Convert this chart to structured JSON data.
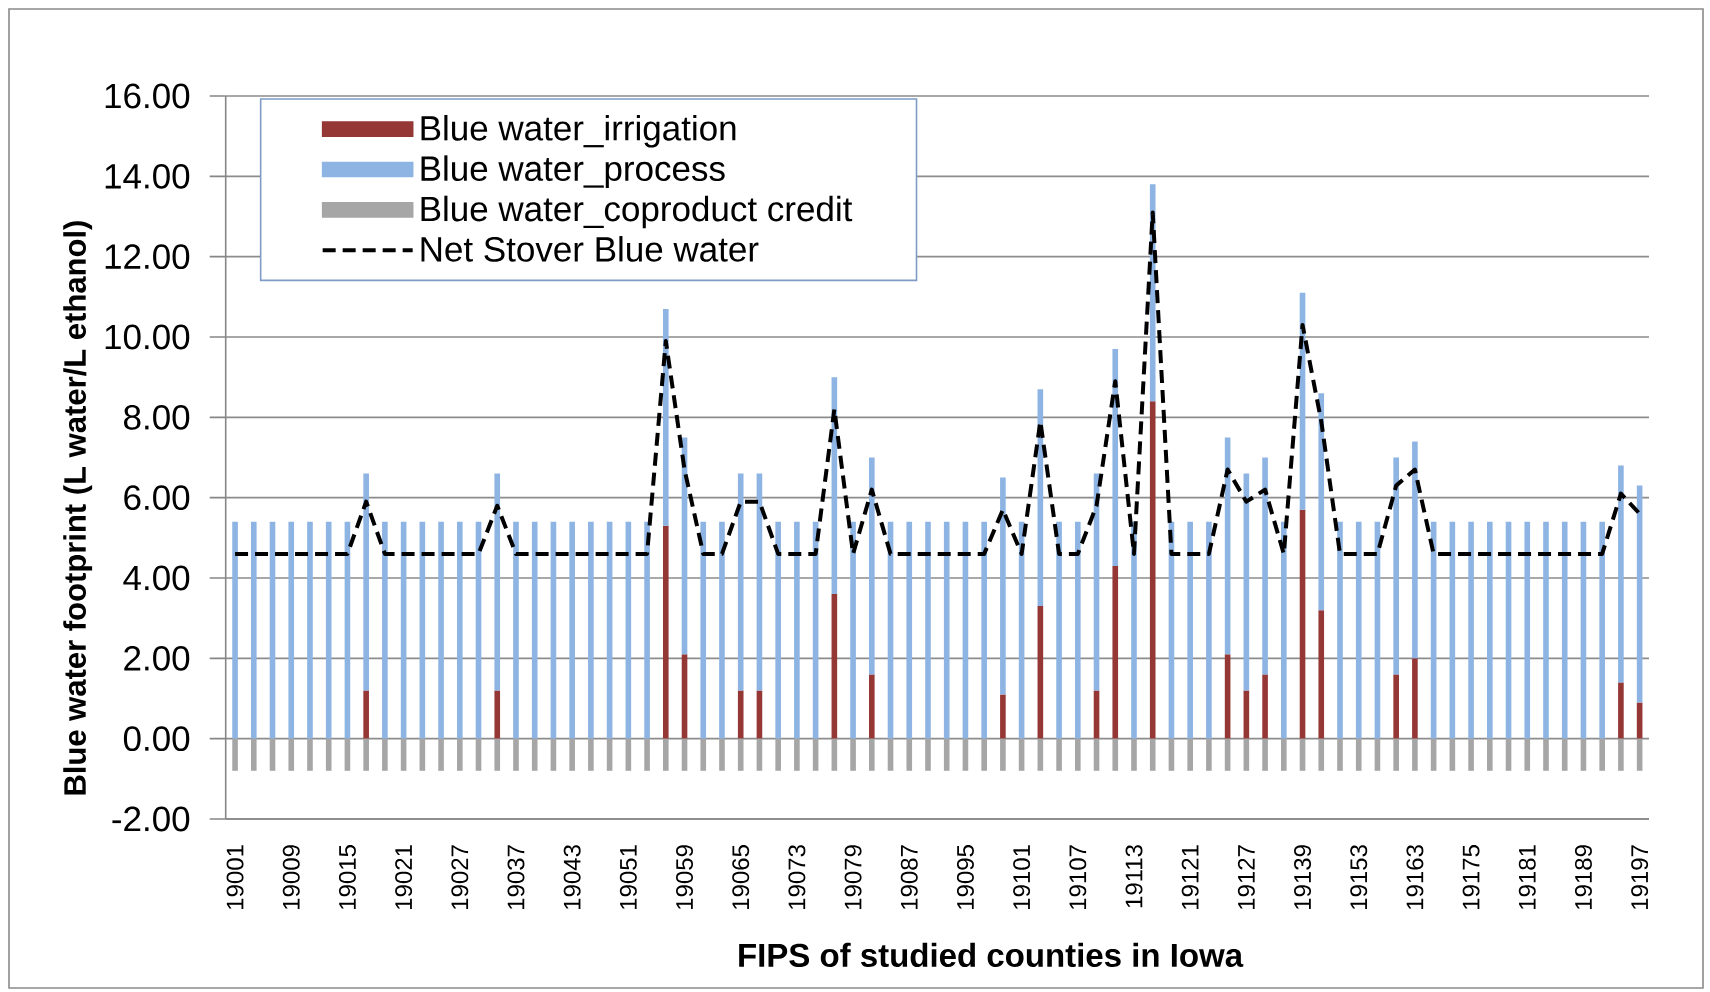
{
  "chart_data": {
    "type": "bar",
    "stacked": true,
    "xlabel": "FIPS of studied counties in Iowa",
    "ylabel": "Blue water footprint (L water/L ethanol)",
    "categories": [
      "19001",
      null,
      null,
      "19009",
      null,
      null,
      "19015",
      null,
      null,
      "19021",
      null,
      null,
      "19027",
      null,
      null,
      "19037",
      null,
      null,
      "19043",
      null,
      null,
      "19051",
      null,
      null,
      "19059",
      null,
      null,
      "19065",
      null,
      null,
      "19073",
      null,
      null,
      "19079",
      null,
      null,
      "19087",
      null,
      null,
      "19095",
      null,
      null,
      "19101",
      null,
      null,
      "19107",
      null,
      null,
      "19113",
      null,
      null,
      "19121",
      null,
      null,
      "19127",
      null,
      null,
      "19139",
      null,
      null,
      "19153",
      null,
      null,
      "19163",
      null,
      null,
      "19175",
      null,
      null,
      "19181",
      null,
      null,
      "19189",
      null,
      null,
      "19197"
    ],
    "series": [
      {
        "name": "Blue water_irrigation",
        "color": "#953735",
        "values": [
          0,
          0,
          0,
          0,
          0,
          0,
          0,
          1.2,
          0,
          0,
          0,
          0,
          0,
          0,
          1.2,
          0,
          0,
          0,
          0,
          0,
          0,
          0,
          0,
          5.3,
          2.1,
          0,
          0,
          1.2,
          1.2,
          0,
          0,
          0,
          3.6,
          0,
          1.6,
          0,
          0,
          0,
          0,
          0,
          0,
          1.1,
          0,
          3.3,
          0,
          0,
          1.2,
          4.3,
          0,
          8.4,
          0,
          0,
          0,
          2.1,
          1.2,
          1.6,
          0,
          5.7,
          3.2,
          0,
          0,
          0,
          1.6,
          2.0,
          0,
          0,
          0,
          0,
          0,
          0,
          0,
          0,
          0,
          0,
          1.4,
          0.9
        ]
      },
      {
        "name": "Blue water_process",
        "color": "#8db4e2",
        "values": [
          5.4,
          5.4,
          5.4,
          5.4,
          5.4,
          5.4,
          5.4,
          5.4,
          5.4,
          5.4,
          5.4,
          5.4,
          5.4,
          5.4,
          5.4,
          5.4,
          5.4,
          5.4,
          5.4,
          5.4,
          5.4,
          5.4,
          5.4,
          5.4,
          5.4,
          5.4,
          5.4,
          5.4,
          5.4,
          5.4,
          5.4,
          5.4,
          5.4,
          5.4,
          5.4,
          5.4,
          5.4,
          5.4,
          5.4,
          5.4,
          5.4,
          5.4,
          5.4,
          5.4,
          5.4,
          5.4,
          5.4,
          5.4,
          5.4,
          5.4,
          5.4,
          5.4,
          5.4,
          5.4,
          5.4,
          5.4,
          5.4,
          5.4,
          5.4,
          5.4,
          5.4,
          5.4,
          5.4,
          5.4,
          5.4,
          5.4,
          5.4,
          5.4,
          5.4,
          5.4,
          5.4,
          5.4,
          5.4,
          5.4,
          5.4,
          5.4
        ]
      },
      {
        "name": "Blue water_coproduct credit",
        "color": "#a6a6a6",
        "values": [
          -0.8,
          -0.8,
          -0.8,
          -0.8,
          -0.8,
          -0.8,
          -0.8,
          -0.8,
          -0.8,
          -0.8,
          -0.8,
          -0.8,
          -0.8,
          -0.8,
          -0.8,
          -0.8,
          -0.8,
          -0.8,
          -0.8,
          -0.8,
          -0.8,
          -0.8,
          -0.8,
          -0.8,
          -0.8,
          -0.8,
          -0.8,
          -0.8,
          -0.8,
          -0.8,
          -0.8,
          -0.8,
          -0.8,
          -0.8,
          -0.8,
          -0.8,
          -0.8,
          -0.8,
          -0.8,
          -0.8,
          -0.8,
          -0.8,
          -0.8,
          -0.8,
          -0.8,
          -0.8,
          -0.8,
          -0.8,
          -0.8,
          -0.8,
          -0.8,
          -0.8,
          -0.8,
          -0.8,
          -0.8,
          -0.8,
          -0.8,
          -0.8,
          -0.8,
          -0.8,
          -0.8,
          -0.8,
          -0.8,
          -0.8,
          -0.8,
          -0.8,
          -0.8,
          -0.8,
          -0.8,
          -0.8,
          -0.8,
          -0.8,
          -0.8,
          -0.8,
          -0.8,
          -0.8
        ]
      },
      {
        "name": "Net Stover Blue water",
        "type": "line",
        "color": "#000000",
        "line_style": "dashed",
        "values": [
          4.6,
          4.6,
          4.6,
          4.6,
          4.6,
          4.6,
          4.6,
          5.9,
          4.6,
          4.6,
          4.6,
          4.6,
          4.6,
          4.6,
          5.8,
          4.6,
          4.6,
          4.6,
          4.6,
          4.6,
          4.6,
          4.6,
          4.6,
          9.9,
          6.7,
          4.6,
          4.6,
          5.9,
          5.9,
          4.6,
          4.6,
          4.6,
          8.2,
          4.6,
          6.2,
          4.6,
          4.6,
          4.6,
          4.6,
          4.6,
          4.6,
          5.7,
          4.6,
          7.9,
          4.6,
          4.6,
          5.8,
          8.9,
          4.6,
          13.1,
          4.6,
          4.6,
          4.6,
          6.7,
          5.9,
          6.2,
          4.6,
          10.3,
          7.9,
          4.6,
          4.6,
          4.6,
          6.3,
          6.7,
          4.6,
          4.6,
          4.6,
          4.6,
          4.6,
          4.6,
          4.6,
          4.6,
          4.6,
          4.6,
          6.1,
          5.6
        ]
      }
    ],
    "ylim": [
      -2,
      16
    ],
    "yticks": [
      {
        "value": -2,
        "label": "-2.00"
      },
      {
        "value": 0,
        "label": "0.00"
      },
      {
        "value": 2,
        "label": "2.00"
      },
      {
        "value": 4,
        "label": "4.00"
      },
      {
        "value": 6,
        "label": "6.00"
      },
      {
        "value": 8,
        "label": "8.00"
      },
      {
        "value": 10,
        "label": "10.00"
      },
      {
        "value": 12,
        "label": "12.00"
      },
      {
        "value": 14,
        "label": "14.00"
      },
      {
        "value": 16,
        "label": "16.00"
      }
    ],
    "grid": "y",
    "legend": "top left"
  }
}
